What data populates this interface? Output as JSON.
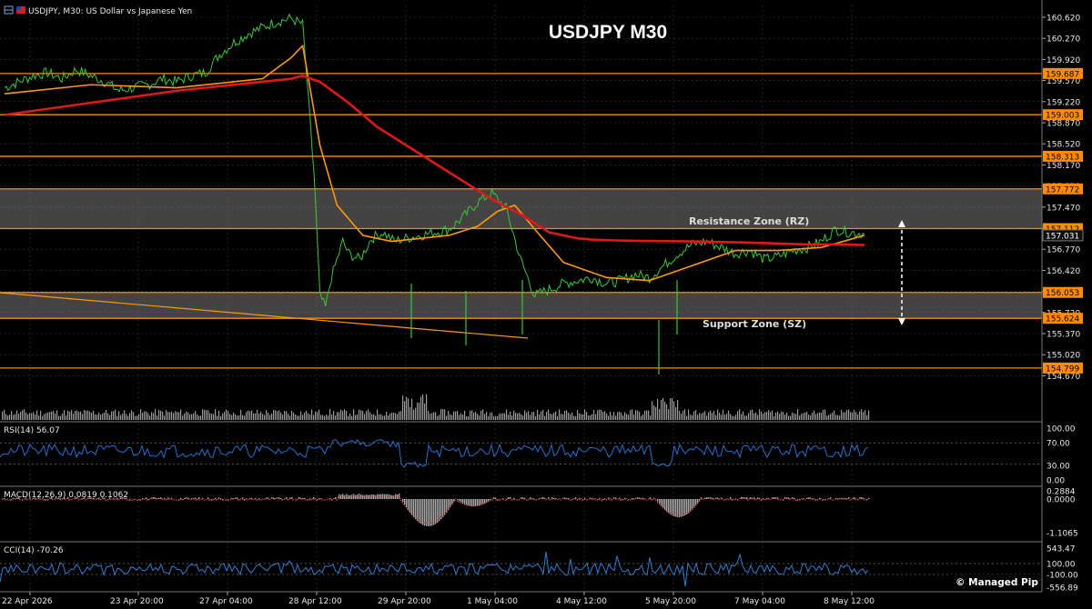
{
  "header": {
    "symbol_line": "USDJPY, M30:  US Dollar vs Japanese Yen"
  },
  "colors": {
    "background": "#000000",
    "grid": "#3a3a3a",
    "price": "#33cc33",
    "ema_fast": "#ffcc00",
    "ema_slow": "#ff9900",
    "ma_long": "#e01818",
    "level": "#ff8c00",
    "zone_fill": "#7a7a7a",
    "rsi": "#1e72d2",
    "macd_hist": "#aaaaaa",
    "macd_signal": "#d04040",
    "cci": "#2a80d8",
    "volume": "#9a9a9a",
    "label_bg": "#ff8c00"
  },
  "chart_data": {
    "type": "line",
    "title": "USDJPY M30",
    "timeframe": "M30",
    "y_range": [
      154.45,
      160.75
    ],
    "y_ticks": [
      "160.620",
      "160.270",
      "159.920",
      "159.570",
      "159.220",
      "158.870",
      "158.520",
      "158.170",
      "157.820",
      "157.470",
      "157.120",
      "156.770",
      "156.420",
      "156.070",
      "155.720",
      "155.370",
      "155.020",
      "154.670"
    ],
    "x_labels": [
      "22 Apr 2026",
      "23 Apr 20:00",
      "27 Apr 04:00",
      "28 Apr 12:00",
      "29 Apr 20:00",
      "1 May 04:00",
      "4 May 12:00",
      "5 May 20:00",
      "7 May 04:00",
      "8 May 12:00"
    ],
    "levels": [
      {
        "label": "159.687",
        "value": 159.687
      },
      {
        "label": "159.003",
        "value": 159.003
      },
      {
        "label": "158.313",
        "value": 158.313
      },
      {
        "label": "157.772",
        "value": 157.772
      },
      {
        "label": "157.112",
        "value": 157.112
      },
      {
        "label": "156.053",
        "value": 156.053
      },
      {
        "label": "155.624",
        "value": 155.624
      },
      {
        "label": "154.799",
        "value": 154.799
      }
    ],
    "current_price": {
      "label": "157.031",
      "value": 157.031
    },
    "zones": [
      {
        "name": "Resistance Zone (RZ)",
        "from": 157.112,
        "to": 157.772
      },
      {
        "name": "Support Zone (SZ)",
        "from": 155.624,
        "to": 156.053
      }
    ],
    "series": [
      {
        "x": [
          0,
          5,
          10,
          15,
          20,
          25,
          30,
          35,
          40,
          45,
          50,
          55,
          60,
          65,
          70,
          75,
          80,
          85,
          90,
          95,
          100,
          104,
          108,
          110,
          112,
          114,
          116,
          118,
          120,
          124,
          128,
          132,
          136,
          140,
          145,
          150,
          155,
          160,
          165,
          170,
          175,
          180,
          185,
          190,
          195,
          200,
          205,
          210,
          215,
          220,
          225,
          230,
          235,
          240,
          245,
          250,
          255,
          260,
          265,
          270,
          275,
          280,
          285,
          290,
          295,
          300
        ],
        "values": [
          159.45,
          159.55,
          159.65,
          159.7,
          159.6,
          159.75,
          159.65,
          159.55,
          159.4,
          159.45,
          159.5,
          159.6,
          159.55,
          159.65,
          159.7,
          160.0,
          160.2,
          160.35,
          160.45,
          160.55,
          160.6,
          160.5,
          158.0,
          156.0,
          155.8,
          156.3,
          156.6,
          156.9,
          156.7,
          156.6,
          156.95,
          157.05,
          156.9,
          156.95,
          157.0,
          157.05,
          157.1,
          157.3,
          157.55,
          157.7,
          157.45,
          156.6,
          156.0,
          156.1,
          156.2,
          156.25,
          156.3,
          156.2,
          156.25,
          156.35,
          156.3,
          156.5,
          156.7,
          156.85,
          156.9,
          156.8,
          156.7,
          156.75,
          156.6,
          156.65,
          156.75,
          156.8,
          156.9,
          157.1,
          157.05,
          157.03
        ]
      },
      {
        "x": [
          0,
          30,
          60,
          90,
          100,
          104,
          110,
          116,
          125,
          135,
          145,
          155,
          165,
          172,
          178,
          185,
          195,
          210,
          225,
          240,
          255,
          270,
          285,
          300
        ],
        "values": [
          159.35,
          159.5,
          159.45,
          159.6,
          159.95,
          160.15,
          158.5,
          157.5,
          157.0,
          156.9,
          156.95,
          157.0,
          157.15,
          157.4,
          157.5,
          157.1,
          156.55,
          156.3,
          156.25,
          156.5,
          156.75,
          156.75,
          156.8,
          157.0
        ]
      },
      {
        "x": [
          0,
          30,
          60,
          90,
          100,
          104,
          110,
          120,
          130,
          145,
          160,
          170,
          180,
          190,
          200,
          205,
          210,
          220,
          240,
          260,
          280,
          290,
          300
        ],
        "values": [
          159.0,
          159.2,
          159.4,
          159.55,
          159.6,
          159.65,
          159.55,
          159.2,
          158.8,
          158.35,
          157.9,
          157.6,
          157.35,
          157.05,
          156.95,
          156.93,
          156.92,
          156.91,
          156.9,
          156.88,
          156.85,
          156.85,
          156.84
        ]
      }
    ],
    "rsi": {
      "label": "RSI(14) 56.07",
      "ticks": [
        "100.00",
        "70.00",
        "30.00",
        "0.00"
      ]
    },
    "macd": {
      "label": "MACD(12,26,9) 0.0819 0.1062",
      "ticks": [
        "0.2884",
        "0.0000",
        "-1.1065"
      ]
    },
    "cci": {
      "label": "CCI(14) -70.26",
      "ticks": [
        "543.47",
        "100.00",
        "-100.00",
        "-556.89"
      ]
    }
  },
  "annotations": {
    "resistance_label": "Resistance Zone (RZ)",
    "support_label": "Support Zone (SZ)",
    "watermark": "© Managed Pip"
  }
}
